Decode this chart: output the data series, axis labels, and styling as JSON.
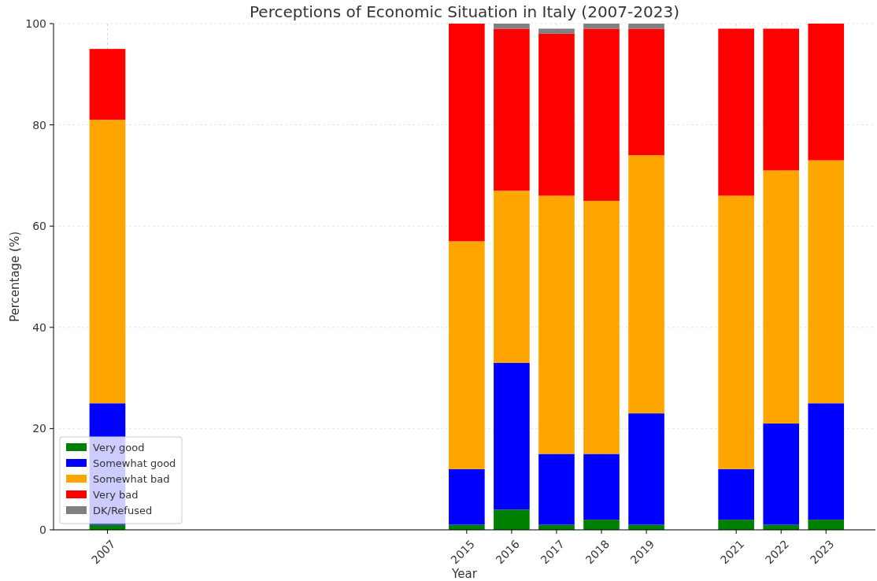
{
  "chart_data": {
    "type": "bar",
    "title": "Perceptions of Economic Situation in Italy (2007-2023)",
    "xlabel": "Year",
    "ylabel": "Percentage (%)",
    "stacked": true,
    "x": [
      2007,
      2015,
      2016,
      2017,
      2018,
      2019,
      2021,
      2022,
      2023
    ],
    "xlim": [
      2005.8,
      2024.1
    ],
    "xticks": [
      2007,
      2015,
      2016,
      2017,
      2018,
      2019,
      2021,
      2022,
      2023
    ],
    "ylim": [
      0,
      100
    ],
    "yticks": [
      0,
      20,
      40,
      60,
      80,
      100
    ],
    "grid": true,
    "legend": "bottom left",
    "series": [
      {
        "name": "Very good",
        "color": "#008000",
        "values": [
          1,
          1,
          4,
          1,
          2,
          1,
          2,
          1,
          2
        ]
      },
      {
        "name": "Somewhat good",
        "color": "#0000ff",
        "values": [
          24,
          11,
          29,
          14,
          13,
          22,
          10,
          20,
          23
        ]
      },
      {
        "name": "Somewhat bad",
        "color": "#ffa500",
        "values": [
          56,
          45,
          34,
          51,
          50,
          51,
          54,
          50,
          48
        ]
      },
      {
        "name": "Very bad",
        "color": "#ff0000",
        "values": [
          14,
          43,
          32,
          32,
          34,
          25,
          33,
          28,
          27
        ]
      },
      {
        "name": "DK/Refused",
        "color": "#808080",
        "values": [
          0,
          0,
          1,
          1,
          1,
          1,
          0,
          0,
          0
        ]
      }
    ]
  }
}
